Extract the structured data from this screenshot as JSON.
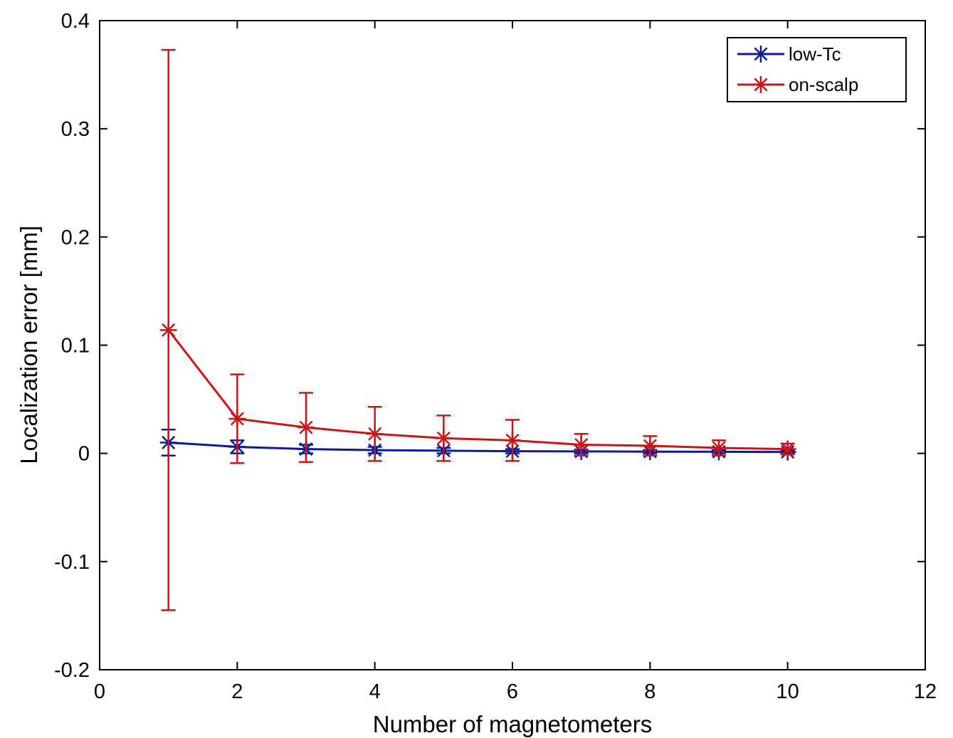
{
  "chart_data": {
    "type": "line",
    "xlabel": "Number of magnetometers",
    "ylabel": "Localization error [mm]",
    "xlim": [
      0,
      12
    ],
    "ylim": [
      -0.2,
      0.4
    ],
    "xticks": [
      0,
      2,
      4,
      6,
      8,
      10,
      12
    ],
    "yticks": [
      -0.2,
      -0.1,
      0,
      0.1,
      0.2,
      0.3,
      0.4
    ],
    "xtick_labels": [
      "0",
      "2",
      "4",
      "6",
      "8",
      "10",
      "12"
    ],
    "ytick_labels": [
      "-0.2",
      "-0.1",
      "0",
      "0.1",
      "0.2",
      "0.3",
      "0.4"
    ],
    "grid": false,
    "legend_position": "top-right",
    "x": [
      1,
      2,
      3,
      4,
      5,
      6,
      7,
      8,
      9,
      10
    ],
    "series": [
      {
        "name": "low-Tc",
        "color": "#0a1c96",
        "marker": "asterisk",
        "values": [
          0.01,
          0.006,
          0.004,
          0.003,
          0.0025,
          0.002,
          0.0018,
          0.0016,
          0.0015,
          0.0013
        ],
        "errors": [
          0.012,
          0.006,
          0.004,
          0.003,
          0.0025,
          0.002,
          0.0018,
          0.0016,
          0.0015,
          0.0013
        ]
      },
      {
        "name": "on-scalp",
        "color": "#cc1414",
        "marker": "asterisk",
        "values": [
          0.114,
          0.032,
          0.024,
          0.018,
          0.014,
          0.012,
          0.008,
          0.007,
          0.005,
          0.004
        ],
        "errors": [
          0.259,
          0.041,
          0.032,
          0.025,
          0.021,
          0.019,
          0.01,
          0.009,
          0.007,
          0.005
        ]
      }
    ]
  }
}
